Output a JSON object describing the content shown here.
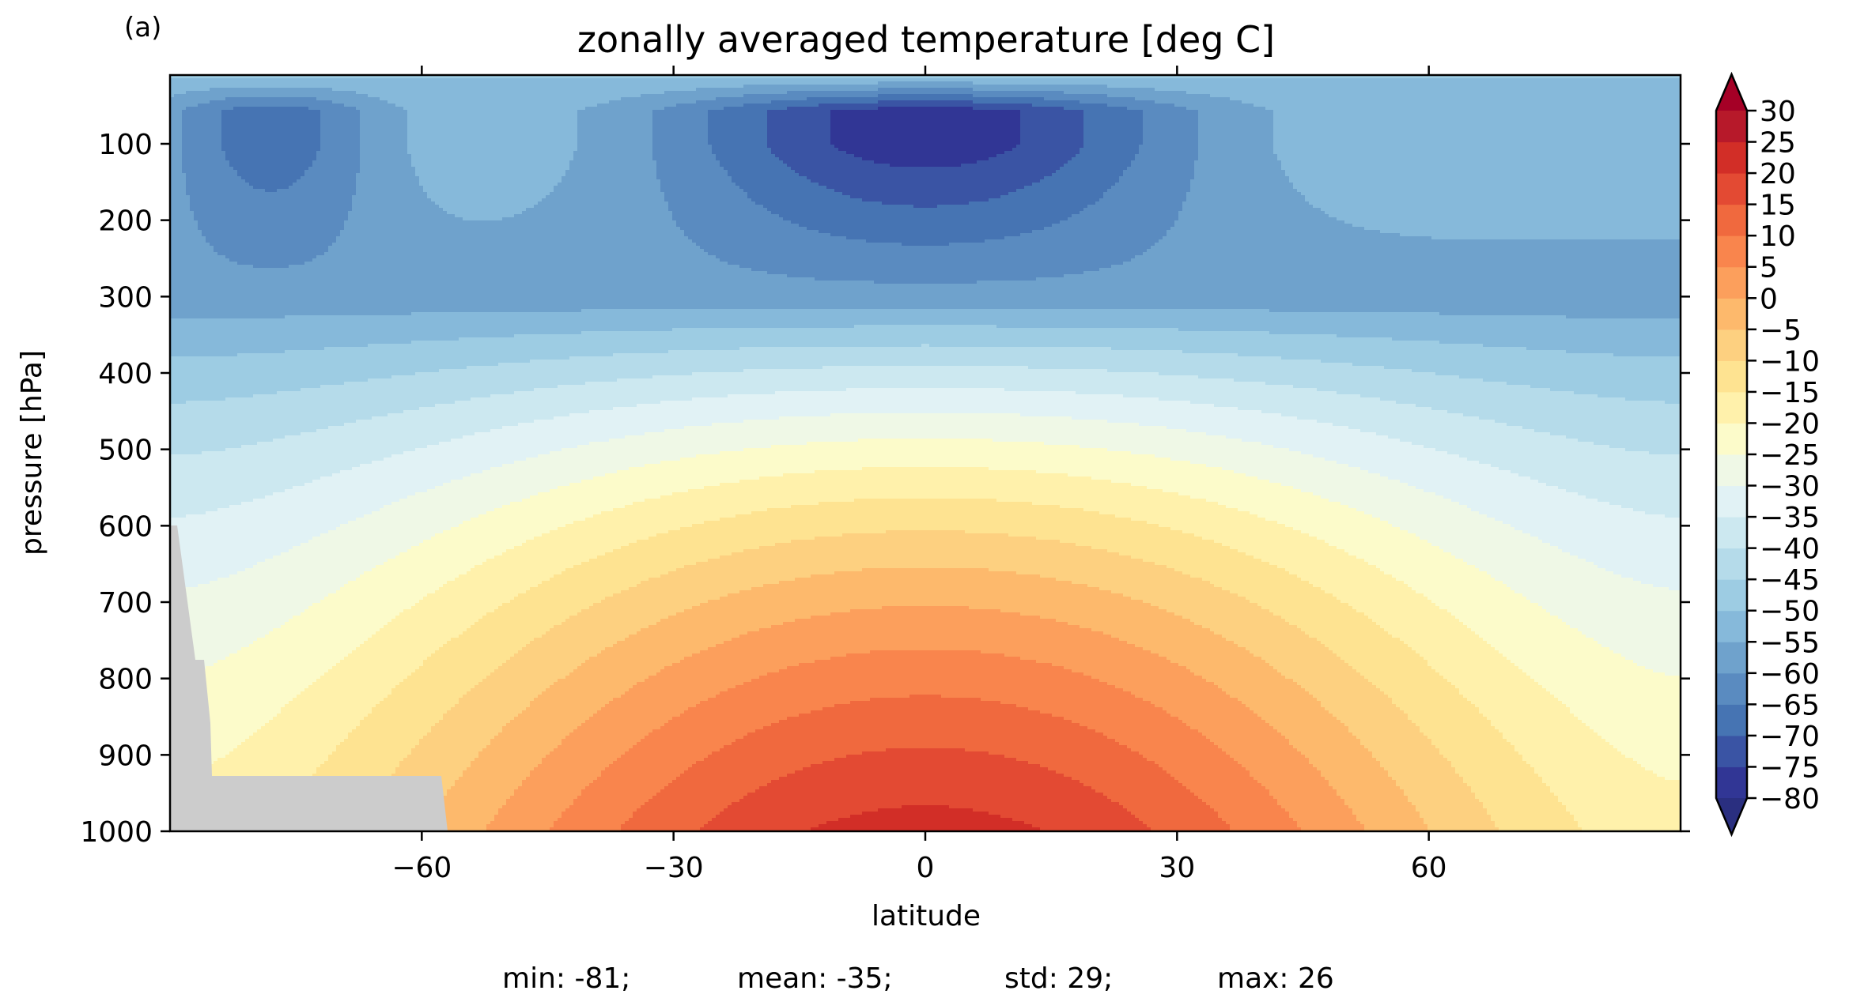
{
  "panel_label": "(a)",
  "chart_data": {
    "type": "heatmap",
    "subtype": "filled-contour",
    "title": "zonally averaged temperature [deg C]",
    "xlabel": "latitude",
    "ylabel": "pressure [hPa]",
    "xlim": [
      -90,
      90
    ],
    "ylim": [
      1000,
      10
    ],
    "y_inverted": true,
    "x_ticks": [
      -60,
      -30,
      0,
      30,
      60
    ],
    "x_tick_labels": [
      "−60",
      "−30",
      "0",
      "30",
      "60"
    ],
    "y_ticks": [
      100,
      200,
      300,
      400,
      500,
      600,
      700,
      800,
      900,
      1000
    ],
    "y_tick_labels": [
      "100",
      "200",
      "300",
      "400",
      "500",
      "600",
      "700",
      "800",
      "900",
      "1000"
    ],
    "colormap": "RdYlBu_r",
    "colorbar": {
      "levels": [
        -80,
        -75,
        -70,
        -65,
        -60,
        -55,
        -50,
        -45,
        -40,
        -35,
        -30,
        -25,
        -20,
        -15,
        -10,
        -5,
        0,
        5,
        10,
        15,
        20,
        25,
        30
      ],
      "tick_labels": [
        "−80",
        "−75",
        "−70",
        "−65",
        "−60",
        "−55",
        "−50",
        "−45",
        "−40",
        "−35",
        "−30",
        "−25",
        "−20",
        "−15",
        "−10",
        "−5",
        "0",
        "5",
        "10",
        "15",
        "20",
        "25",
        "30"
      ],
      "extend": "both",
      "colors": [
        "#313695",
        "#3a54a4",
        "#4674b3",
        "#5a8bc0",
        "#6fa2cc",
        "#86b9da",
        "#9dcce3",
        "#b5dbea",
        "#cce8f0",
        "#e1f2f5",
        "#eff8e6",
        "#fcfbca",
        "#fff1ab",
        "#fee391",
        "#fdd080",
        "#fdb96c",
        "#fc9f5c",
        "#f9854d",
        "#f0693e",
        "#e34a33",
        "#d22e27",
        "#b7192a"
      ],
      "under_color": "#2a2f80",
      "over_color": "#a50026",
      "orientation": "vertical",
      "placement": "right"
    },
    "masked_region": {
      "color": "#cccccc",
      "description": "topography (no data)"
    },
    "grid": false
  },
  "stats": [
    {
      "label": "min: -81;"
    },
    {
      "label": "mean: -35;"
    },
    {
      "label": "std: 29;"
    },
    {
      "label": "max: 26"
    }
  ]
}
